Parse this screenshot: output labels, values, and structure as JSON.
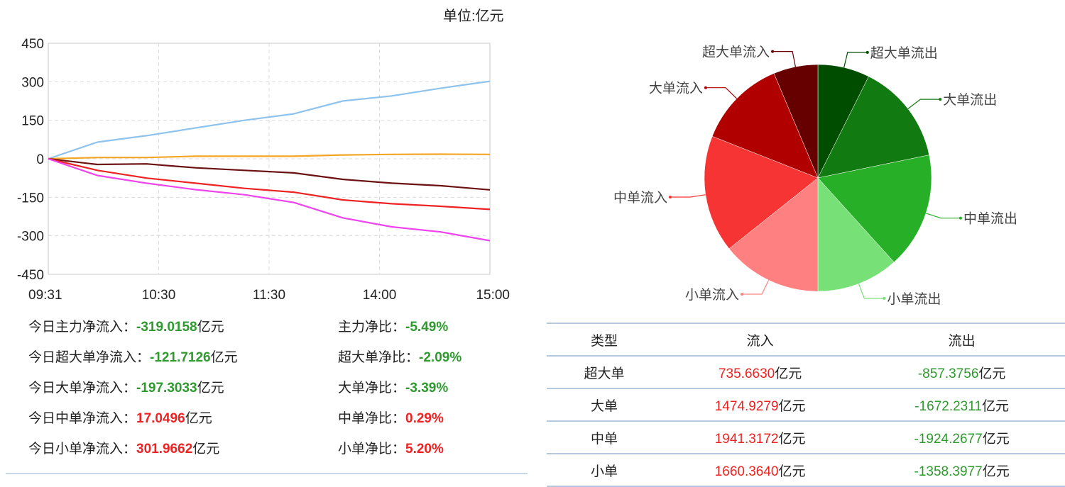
{
  "unit_label": "单位:亿元",
  "chart_data": [
    {
      "type": "line",
      "x_ticks": [
        "09:31",
        "10:30",
        "11:30",
        "14:00",
        "15:00"
      ],
      "y_ticks": [
        "450",
        "300",
        "150",
        "0",
        "-150",
        "-300",
        "-450"
      ],
      "ylim": [
        -450,
        450
      ],
      "grid": true,
      "series": [
        {
          "color": "#8ec3ee",
          "values": [
            0,
            65,
            90,
            120,
            150,
            175,
            225,
            245,
            275,
            302
          ]
        },
        {
          "color": "#f5a524",
          "values": [
            0,
            5,
            5,
            10,
            10,
            10,
            15,
            17,
            18,
            17
          ]
        },
        {
          "color": "#6b1111",
          "values": [
            0,
            -22,
            -20,
            -35,
            -45,
            -55,
            -80,
            -95,
            -105,
            -121
          ]
        },
        {
          "color": "#ee2222",
          "values": [
            0,
            -45,
            -75,
            -95,
            -115,
            -130,
            -160,
            -175,
            -185,
            -197
          ]
        },
        {
          "color": "#ee44ee",
          "values": [
            0,
            -65,
            -95,
            -120,
            -140,
            -170,
            -230,
            -265,
            -285,
            -319
          ]
        }
      ]
    },
    {
      "type": "pie",
      "slices": [
        {
          "label": "超大单流出",
          "value": 857.3756,
          "color": "#004d00"
        },
        {
          "label": "大单流出",
          "value": 1672.2311,
          "color": "#117a11"
        },
        {
          "label": "中单流出",
          "value": 1924.2677,
          "color": "#27b027"
        },
        {
          "label": "小单流出",
          "value": 1358.3977,
          "color": "#77e077"
        },
        {
          "label": "小单流入",
          "value": 1660.364,
          "color": "#ff8080"
        },
        {
          "label": "中单流入",
          "value": 1941.3172,
          "color": "#f73434"
        },
        {
          "label": "大单流入",
          "value": 1474.9279,
          "color": "#b00000"
        },
        {
          "label": "超大单流入",
          "value": 735.663,
          "color": "#660000"
        }
      ]
    }
  ],
  "stats": [
    {
      "label": "今日主力净流入：",
      "value": "-319.0158",
      "unit": "亿元",
      "ratio_label": "主力净比：",
      "ratio": "-5.49%",
      "sign": "neg"
    },
    {
      "label": "今日超大单净流入：",
      "value": "-121.7126",
      "unit": "亿元",
      "ratio_label": "超大单净比：",
      "ratio": "-2.09%",
      "sign": "neg"
    },
    {
      "label": "今日大单净流入：",
      "value": "-197.3033",
      "unit": "亿元",
      "ratio_label": "大单净比：",
      "ratio": "-3.39%",
      "sign": "neg"
    },
    {
      "label": "今日中单净流入：",
      "value": "17.0496",
      "unit": "亿元",
      "ratio_label": "中单净比：",
      "ratio": "0.29%",
      "sign": "pos"
    },
    {
      "label": "今日小单净流入：",
      "value": "301.9662",
      "unit": "亿元",
      "ratio_label": "小单净比：",
      "ratio": "5.20%",
      "sign": "pos"
    }
  ],
  "table": {
    "headers": [
      "类型",
      "流入",
      "流出"
    ],
    "unit": "亿元",
    "rows": [
      {
        "type": "超大单",
        "in": "735.6630",
        "out": "-857.3756"
      },
      {
        "type": "大单",
        "in": "1474.9279",
        "out": "-1672.2311"
      },
      {
        "type": "中单",
        "in": "1941.3172",
        "out": "-1924.2677"
      },
      {
        "type": "小单",
        "in": "1660.3640",
        "out": "-1358.3977"
      }
    ]
  }
}
